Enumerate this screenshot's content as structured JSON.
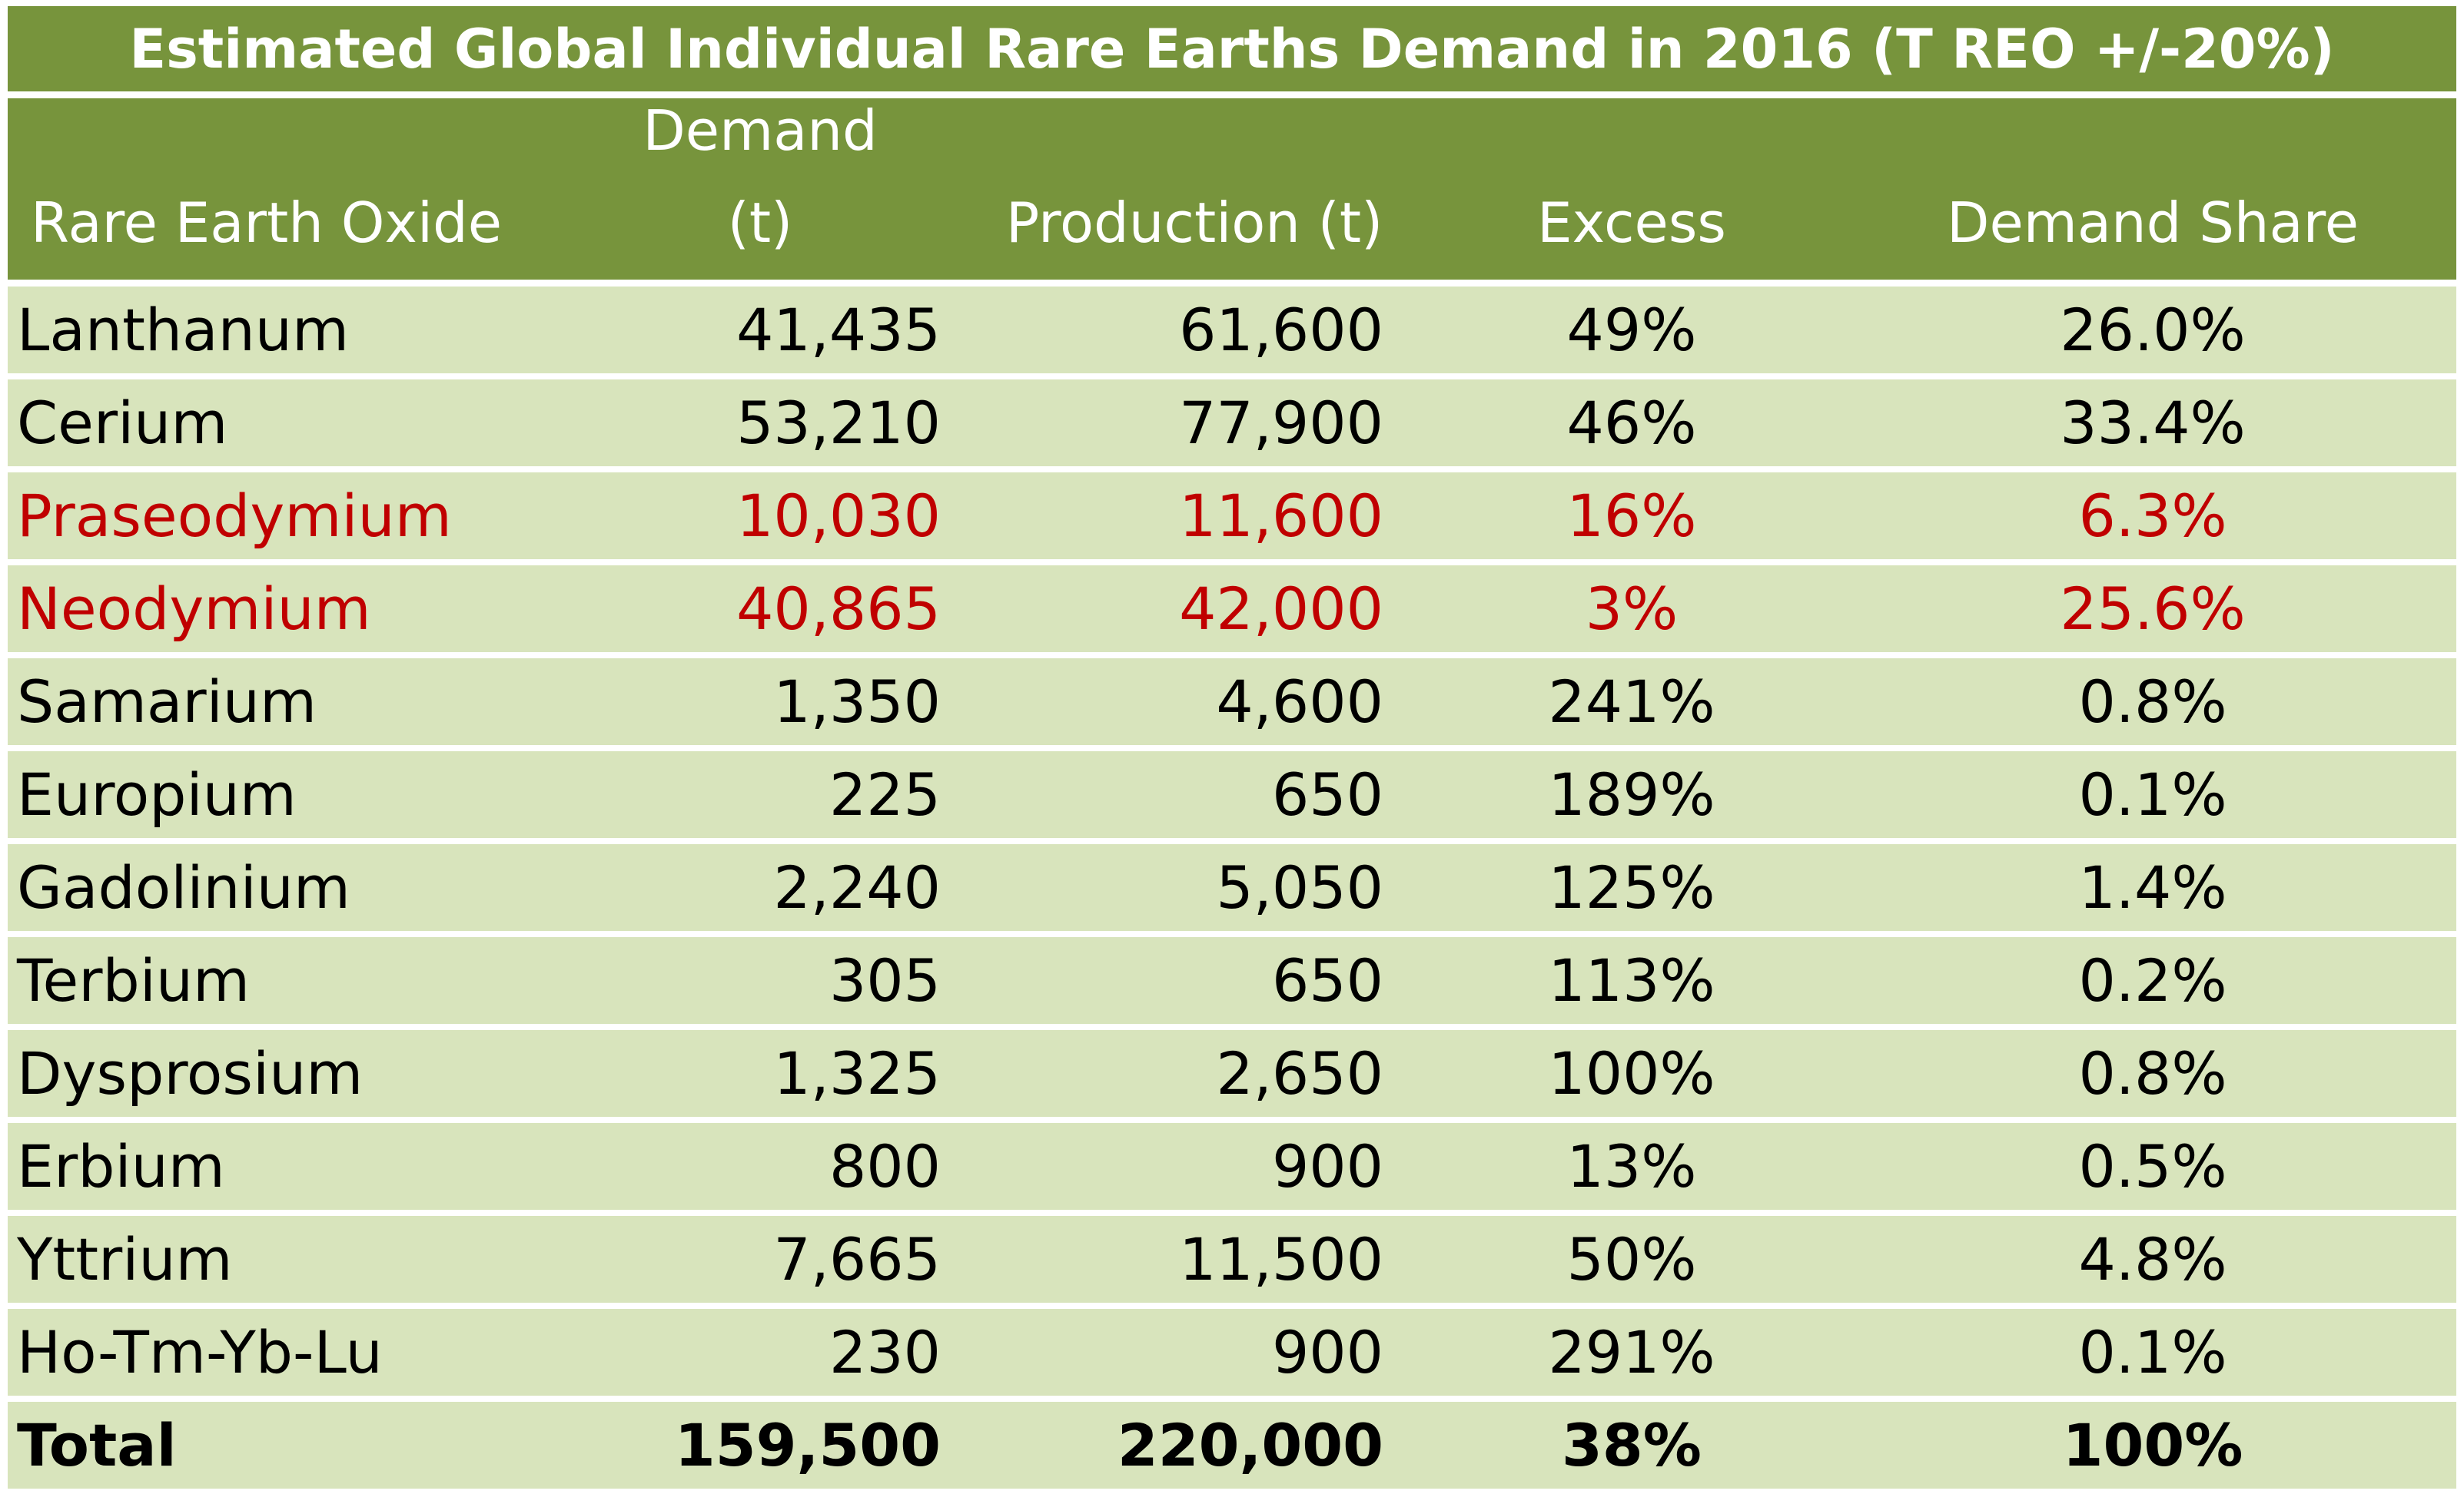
{
  "chart_data": {
    "type": "table",
    "title": "Estimated Global Individual Rare Earths Demand in 2016 (T REO +/-20%)",
    "columns": [
      {
        "lines": [
          "Rare Earth Oxide"
        ]
      },
      {
        "lines": [
          "Demand",
          "(t)"
        ]
      },
      {
        "lines": [
          "Production (t)"
        ]
      },
      {
        "lines": [
          "Excess"
        ]
      },
      {
        "lines": [
          "Demand Share"
        ]
      }
    ],
    "rows": [
      {
        "cells": [
          "Lanthanum",
          "41,435",
          "61,600",
          "49%",
          "26.0%"
        ]
      },
      {
        "cells": [
          "Cerium",
          "53,210",
          "77,900",
          "46%",
          "33.4%"
        ]
      },
      {
        "cells": [
          "Praseodymium",
          "10,030",
          "11,600",
          "16%",
          "6.3%"
        ],
        "highlight": true
      },
      {
        "cells": [
          "Neodymium",
          "40,865",
          "42,000",
          "3%",
          "25.6%"
        ],
        "highlight": true
      },
      {
        "cells": [
          "Samarium",
          "1,350",
          "4,600",
          "241%",
          "0.8%"
        ]
      },
      {
        "cells": [
          "Europium",
          "225",
          "650",
          "189%",
          "0.1%"
        ]
      },
      {
        "cells": [
          "Gadolinium",
          "2,240",
          "5,050",
          "125%",
          "1.4%"
        ]
      },
      {
        "cells": [
          "Terbium",
          "305",
          "650",
          "113%",
          "0.2%"
        ]
      },
      {
        "cells": [
          "Dysprosium",
          "1,325",
          "2,650",
          "100%",
          "0.8%"
        ]
      },
      {
        "cells": [
          "Erbium",
          "800",
          "900",
          "13%",
          "0.5%"
        ]
      },
      {
        "cells": [
          "Yttrium",
          "7,665",
          "11,500",
          "50%",
          "4.8%"
        ]
      },
      {
        "cells": [
          "Ho-Tm-Yb-Lu",
          "230",
          "900",
          "291%",
          "0.1%"
        ]
      }
    ],
    "total": {
      "cells": [
        "Total",
        "159,500",
        "220,000",
        "38%",
        "100%"
      ]
    },
    "colors": {
      "header_background": "#77943c",
      "header_text": "#ffffff",
      "cell_background": "#d8e4bc",
      "text": "#000000",
      "highlight_text": "#c00000",
      "grid": "#ffffff"
    }
  }
}
